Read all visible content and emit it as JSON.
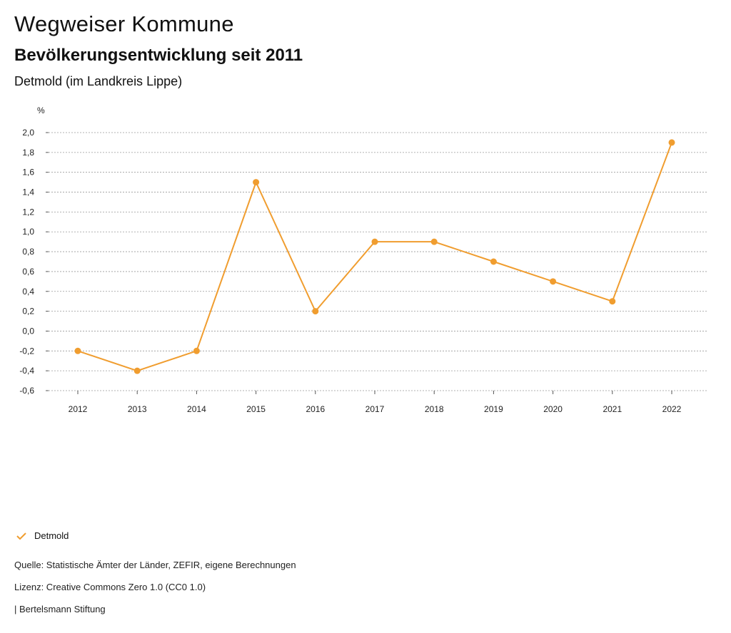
{
  "header": {
    "title": "Wegweiser Kommune",
    "subtitle": "Bevölkerungsentwicklung seit 2011",
    "region": "Detmold (im Landkreis Lippe)"
  },
  "colors": {
    "series": "#f09d2f",
    "grid": "#999999"
  },
  "chart_data": {
    "type": "line",
    "title": "Bevölkerungsentwicklung seit 2011",
    "ylabel": "%",
    "xlabel": "",
    "x": [
      "2012",
      "2013",
      "2014",
      "2015",
      "2016",
      "2017",
      "2018",
      "2019",
      "2020",
      "2021",
      "2022"
    ],
    "yticks": [
      "2,0",
      "1,8",
      "1,6",
      "1,4",
      "1,2",
      "1,0",
      "0,8",
      "0,6",
      "0,4",
      "0,2",
      "0,0",
      "-0,2",
      "-0,4",
      "-0,6"
    ],
    "ylim": [
      -0.6,
      2.0
    ],
    "grid": true,
    "legend_position": "bottom-left",
    "series": [
      {
        "name": "Detmold",
        "values": [
          -0.2,
          -0.4,
          -0.2,
          1.5,
          0.2,
          0.9,
          0.9,
          0.7,
          0.5,
          0.3,
          1.9
        ]
      }
    ]
  },
  "legend": {
    "label": "Detmold",
    "icon": "check-icon"
  },
  "footer": {
    "source": "Quelle: Statistische Ämter der Länder, ZEFIR, eigene Berechnungen",
    "license": "Lizenz: Creative Commons Zero 1.0 (CC0 1.0)",
    "brand": "| Bertelsmann Stiftung"
  }
}
